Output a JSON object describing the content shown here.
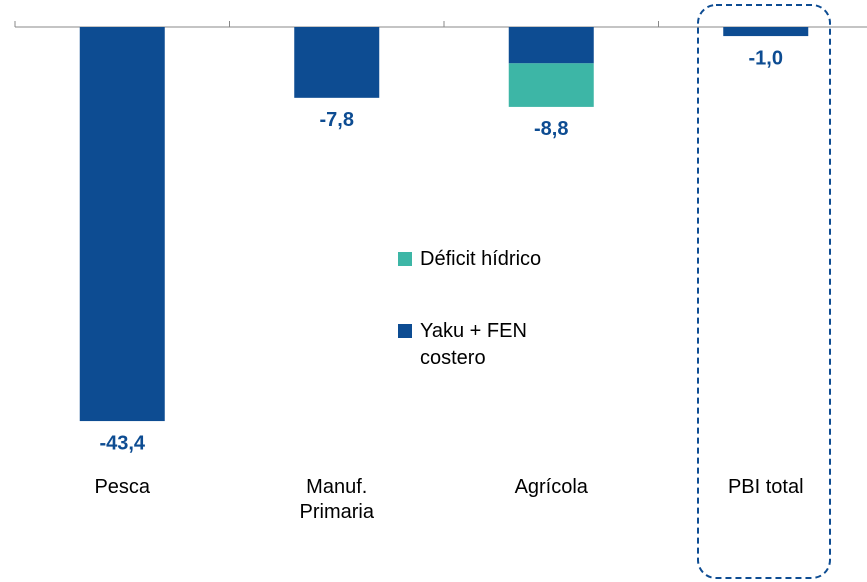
{
  "chart_data": {
    "type": "stacked-bar",
    "categories": [
      "Pesca",
      "Manuf. Primaria",
      "Agrícola",
      "PBI total"
    ],
    "series": [
      {
        "name": "Yaku + FEN costero",
        "color": "#0d4c92",
        "values": [
          -43.4,
          -7.8,
          -4.0,
          -1.0
        ]
      },
      {
        "name": "Déficit hídrico",
        "color": "#3db6a6",
        "values": [
          0,
          0,
          -4.8,
          0
        ]
      }
    ],
    "totals": [
      -43.4,
      -7.8,
      -8.8,
      -1.0
    ],
    "total_labels": [
      "-43,4",
      "-7,8",
      "-8,8",
      "-1,0"
    ],
    "ylim": [
      -50,
      0
    ]
  }
}
